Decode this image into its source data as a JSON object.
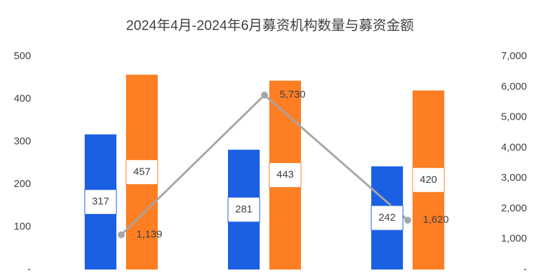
{
  "chart_data": {
    "type": "bar-line",
    "title": "2024年4月-2024年6月募资机构数量与募资金额",
    "categories": [
      null,
      null,
      null
    ],
    "series": [
      {
        "type": "bar",
        "color": "#1b5fe3",
        "values": [
          317,
          281,
          242
        ],
        "value_labels": [
          "317",
          "281",
          "242"
        ]
      },
      {
        "type": "bar",
        "color": "#fd7e23",
        "values": [
          457,
          443,
          420
        ],
        "value_labels": [
          "457",
          "443",
          "420"
        ]
      },
      {
        "type": "line",
        "axis": "y2",
        "color": "#a6a6a6",
        "values": [
          1139,
          5730,
          1620
        ],
        "value_labels": [
          "1,139",
          "5,730",
          "1,620"
        ]
      }
    ],
    "ylim": [
      0,
      500
    ],
    "yticks": [
      {
        "value": 0,
        "label": "-"
      },
      100,
      200,
      300,
      400,
      500
    ],
    "y2lim": [
      0,
      7000
    ],
    "y2ticks": [
      {
        "value": 0,
        "label": "-"
      },
      {
        "value": 1000,
        "label": "1,000"
      },
      {
        "value": 2000,
        "label": "2,000"
      },
      {
        "value": 3000,
        "label": "3,000"
      },
      {
        "value": 4000,
        "label": "4,000"
      },
      {
        "value": 5000,
        "label": "5,000"
      },
      {
        "value": 6000,
        "label": "6,000"
      },
      {
        "value": 7000,
        "label": "7,000"
      }
    ]
  }
}
